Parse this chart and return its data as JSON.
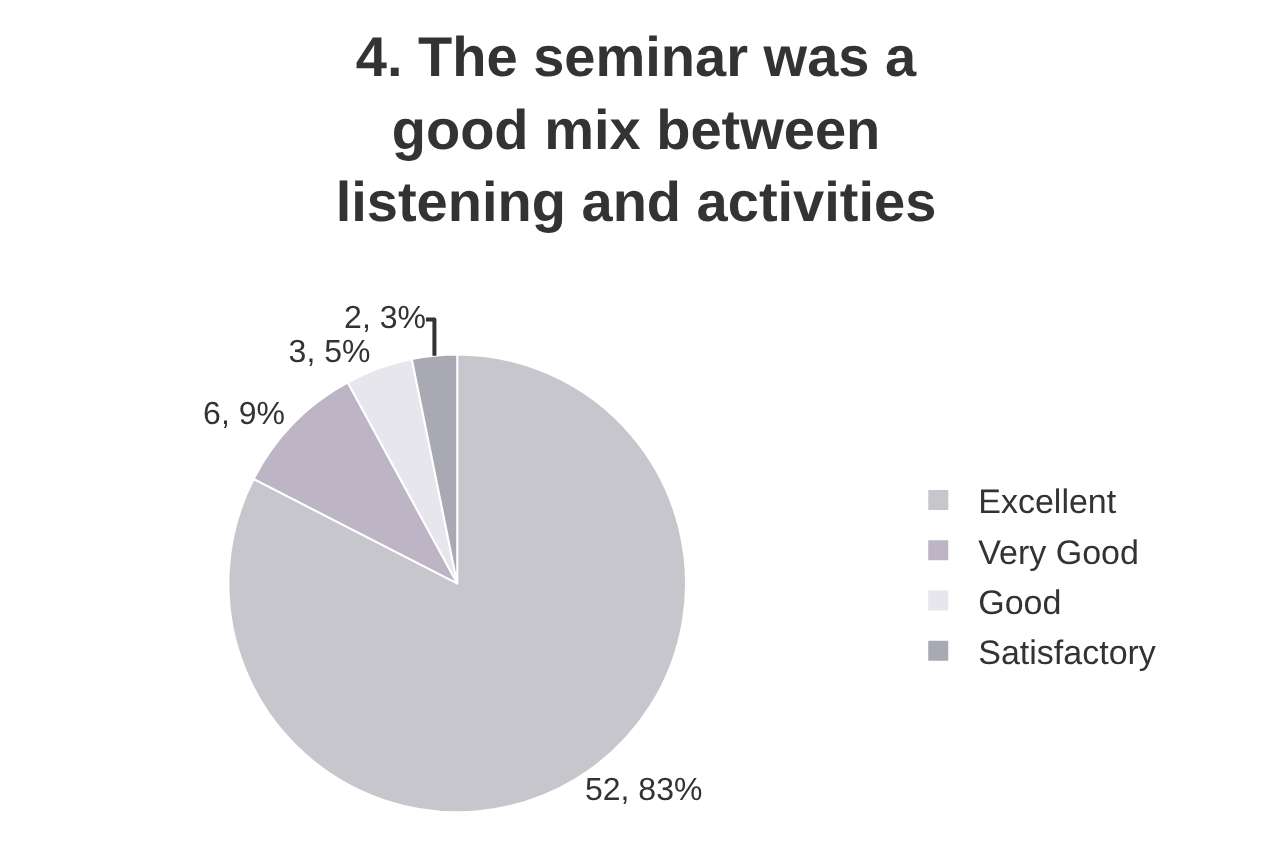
{
  "chart_data": {
    "type": "pie",
    "title": "4. The seminar was a\ngood mix between\nlistening and activities",
    "categories": [
      "Excellent",
      "Very Good",
      "Good",
      "Satisfactory"
    ],
    "values": [
      52,
      6,
      3,
      2
    ],
    "value_labels": [
      "52, 83%",
      "6, 9%",
      "3, 5%",
      "2, 3%"
    ],
    "colors": [
      "#c6c6cc",
      "#bdb5c6",
      "#e6e6ec",
      "#a9a9b3"
    ],
    "legend": "right"
  }
}
